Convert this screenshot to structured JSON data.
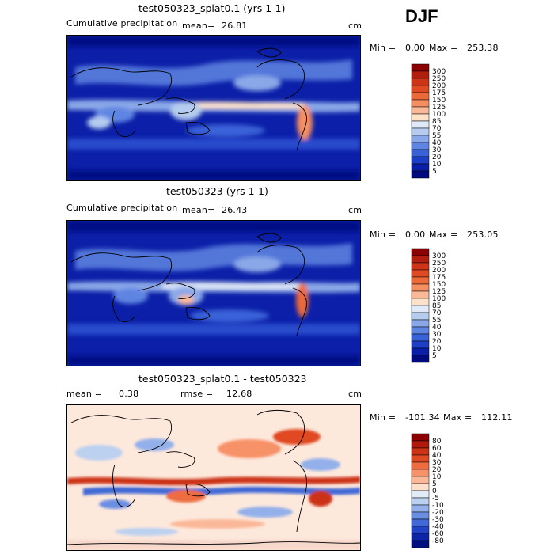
{
  "season": "DJF",
  "panels": [
    {
      "title": "test050323_splat0.1 (yrs 1-1)",
      "field_label": "Cumulative precipitation",
      "stat1_label": "mean=",
      "stat1_value": "26.81",
      "stat2_label": "",
      "stat2_value": "",
      "units": "cm",
      "min_label": "Min =",
      "min_value": "0.00",
      "max_label": "Max =",
      "max_value": "253.38",
      "colorbar": {
        "labels": [
          "300",
          "250",
          "200",
          "175",
          "150",
          "125",
          "100",
          "85",
          "70",
          "55",
          "40",
          "30",
          "20",
          "10",
          "5"
        ],
        "colors": [
          "#8b0000",
          "#b11e0e",
          "#cd3418",
          "#e04a22",
          "#ec6a3a",
          "#f58f62",
          "#fbb896",
          "#fde1c8",
          "#dfe9f7",
          "#b5ccef",
          "#8aa8e8",
          "#5f85e2",
          "#3a62d8",
          "#1d3ec6",
          "#0a1fa8",
          "#000a80"
        ]
      }
    },
    {
      "title": "test050323 (yrs 1-1)",
      "field_label": "Cumulative precipitation",
      "stat1_label": "mean=",
      "stat1_value": "26.43",
      "stat2_label": "",
      "stat2_value": "",
      "units": "cm",
      "min_label": "Min =",
      "min_value": "0.00",
      "max_label": "Max =",
      "max_value": "253.05",
      "colorbar": {
        "labels": [
          "300",
          "250",
          "200",
          "175",
          "150",
          "125",
          "100",
          "85",
          "70",
          "55",
          "40",
          "30",
          "20",
          "10",
          "5"
        ],
        "colors": [
          "#8b0000",
          "#b11e0e",
          "#cd3418",
          "#e04a22",
          "#ec6a3a",
          "#f58f62",
          "#fbb896",
          "#fde1c8",
          "#dfe9f7",
          "#b5ccef",
          "#8aa8e8",
          "#5f85e2",
          "#3a62d8",
          "#1d3ec6",
          "#0a1fa8",
          "#000a80"
        ]
      }
    },
    {
      "title": "test050323_splat0.1 - test050323",
      "field_label": "",
      "stat1_label": "mean =",
      "stat1_value": "0.38",
      "stat2_label": "rmse =",
      "stat2_value": "12.68",
      "units": "cm",
      "min_label": "Min =",
      "min_value": "-101.34",
      "max_label": "Max =",
      "max_value": "112.11",
      "colorbar": {
        "labels": [
          "80",
          "60",
          "40",
          "30",
          "20",
          "10",
          "5",
          "0",
          "-5",
          "-10",
          "-20",
          "-30",
          "-40",
          "-60",
          "-80"
        ],
        "colors": [
          "#8b0000",
          "#b01a0a",
          "#cc3216",
          "#e04a22",
          "#ee6c40",
          "#f79168",
          "#fbb898",
          "#fde0cc",
          "#e2ebf8",
          "#bcd0f0",
          "#93b0ea",
          "#6a8ee2",
          "#4068d6",
          "#2244c4",
          "#0e24a8",
          "#00107e"
        ]
      }
    }
  ],
  "chart_data": [
    {
      "type": "heatmap",
      "title": "test050323_splat0.1 (yrs 1-1)",
      "field": "Cumulative precipitation",
      "units": "cm",
      "mean": 26.81,
      "min": 0.0,
      "max": 253.38,
      "levels": [
        5,
        10,
        20,
        30,
        40,
        55,
        70,
        85,
        100,
        125,
        150,
        175,
        200,
        250,
        300
      ]
    },
    {
      "type": "heatmap",
      "title": "test050323 (yrs 1-1)",
      "field": "Cumulative precipitation",
      "units": "cm",
      "mean": 26.43,
      "min": 0.0,
      "max": 253.05,
      "levels": [
        5,
        10,
        20,
        30,
        40,
        55,
        70,
        85,
        100,
        125,
        150,
        175,
        200,
        250,
        300
      ]
    },
    {
      "type": "heatmap",
      "title": "test050323_splat0.1 - test050323",
      "units": "cm",
      "mean": 0.38,
      "rmse": 12.68,
      "min": -101.34,
      "max": 112.11,
      "levels": [
        -80,
        -60,
        -40,
        -30,
        -20,
        -10,
        -5,
        0,
        5,
        10,
        20,
        30,
        40,
        60,
        80
      ]
    }
  ]
}
